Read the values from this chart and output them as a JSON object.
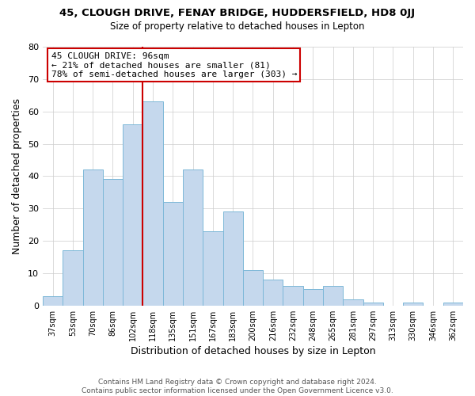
{
  "title": "45, CLOUGH DRIVE, FENAY BRIDGE, HUDDERSFIELD, HD8 0JJ",
  "subtitle": "Size of property relative to detached houses in Lepton",
  "xlabel": "Distribution of detached houses by size in Lepton",
  "ylabel": "Number of detached properties",
  "bar_color": "#c5d8ed",
  "bar_edge_color": "#7db8d8",
  "bar_values": [
    3,
    17,
    42,
    39,
    56,
    63,
    32,
    42,
    23,
    29,
    11,
    8,
    6,
    5,
    6,
    2,
    1,
    0,
    1,
    0,
    1
  ],
  "bar_labels": [
    "37sqm",
    "53sqm",
    "70sqm",
    "86sqm",
    "102sqm",
    "118sqm",
    "135sqm",
    "151sqm",
    "167sqm",
    "183sqm",
    "200sqm",
    "216sqm",
    "232sqm",
    "248sqm",
    "265sqm",
    "281sqm",
    "297sqm",
    "313sqm",
    "330sqm",
    "346sqm",
    "362sqm"
  ],
  "num_bars": 21,
  "ylim": [
    0,
    80
  ],
  "yticks": [
    0,
    10,
    20,
    30,
    40,
    50,
    60,
    70,
    80
  ],
  "vline_x_index": 4,
  "vline_color": "#cc0000",
  "annotation_title": "45 CLOUGH DRIVE: 96sqm",
  "annotation_line1": "← 21% of detached houses are smaller (81)",
  "annotation_line2": "78% of semi-detached houses are larger (303) →",
  "footer1": "Contains HM Land Registry data © Crown copyright and database right 2024.",
  "footer2": "Contains public sector information licensed under the Open Government Licence v3.0.",
  "background_color": "#ffffff",
  "grid_color": "#cccccc",
  "title_fontsize": 9.5,
  "subtitle_fontsize": 8.5,
  "xlabel_fontsize": 9,
  "ylabel_fontsize": 9,
  "tick_fontsize": 7,
  "footer_fontsize": 6.5,
  "annotation_fontsize": 8
}
